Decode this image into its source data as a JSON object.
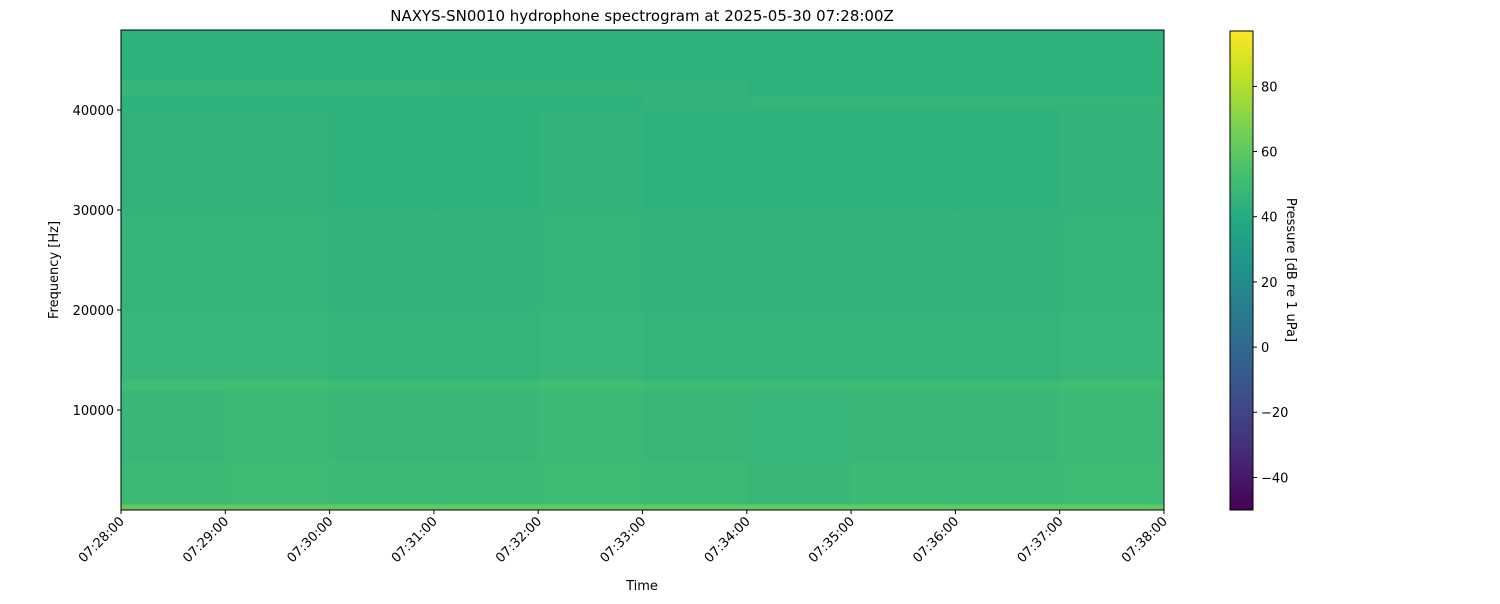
{
  "chart_data": {
    "type": "heatmap",
    "title": "NAXYS-SN0010 hydrophone spectrogram at 2025-05-30 07:28:00Z",
    "xlabel": "Time",
    "ylabel": "Frequency [Hz]",
    "colorbar_label": "Pressure [dB re 1 uPa]",
    "colormap": "viridis",
    "clim": [
      -50,
      97
    ],
    "ylim": [
      0,
      48000
    ],
    "xlim": [
      "07:28:00",
      "07:38:00"
    ],
    "xticks": [
      "07:28:00",
      "07:29:00",
      "07:30:00",
      "07:31:00",
      "07:32:00",
      "07:33:00",
      "07:34:00",
      "07:35:00",
      "07:36:00",
      "07:37:00",
      "07:38:00"
    ],
    "yticks": [
      10000,
      20000,
      30000,
      40000
    ],
    "colorbar_ticks": [
      -40,
      -20,
      0,
      20,
      40,
      60,
      80
    ],
    "time_bins": [
      "07:28",
      "07:29",
      "07:30",
      "07:31",
      "07:32",
      "07:33",
      "07:34",
      "07:35",
      "07:36",
      "07:37"
    ],
    "freq_bands_hz": [
      [
        0,
        600
      ],
      [
        600,
        5000
      ],
      [
        5000,
        12000
      ],
      [
        12000,
        13000
      ],
      [
        13000,
        20000
      ],
      [
        20000,
        30000
      ],
      [
        30000,
        40000
      ],
      [
        40000,
        41500
      ],
      [
        41500,
        43000
      ],
      [
        43000,
        48000
      ]
    ],
    "values_db": [
      [
        62,
        62,
        61,
        61,
        61,
        61,
        61,
        61,
        61,
        61
      ],
      [
        49,
        50,
        49,
        49,
        50,
        49,
        48,
        49,
        49,
        50
      ],
      [
        48,
        49,
        48,
        48,
        49,
        48,
        47,
        48,
        48,
        49
      ],
      [
        51,
        51,
        50,
        50,
        51,
        50,
        50,
        50,
        50,
        51
      ],
      [
        47,
        47,
        46,
        46,
        47,
        46,
        46,
        46,
        46,
        47
      ],
      [
        46,
        46,
        45,
        45,
        46,
        45,
        45,
        45,
        45,
        46
      ],
      [
        45,
        45,
        44,
        44,
        45,
        44,
        44,
        44,
        44,
        45
      ],
      [
        44,
        44,
        44,
        44,
        44,
        45,
        46,
        46,
        46,
        46
      ],
      [
        47,
        47,
        47,
        46,
        46,
        45,
        44,
        44,
        44,
        44
      ],
      [
        44,
        44,
        44,
        44,
        44,
        44,
        44,
        44,
        44,
        44
      ]
    ]
  }
}
